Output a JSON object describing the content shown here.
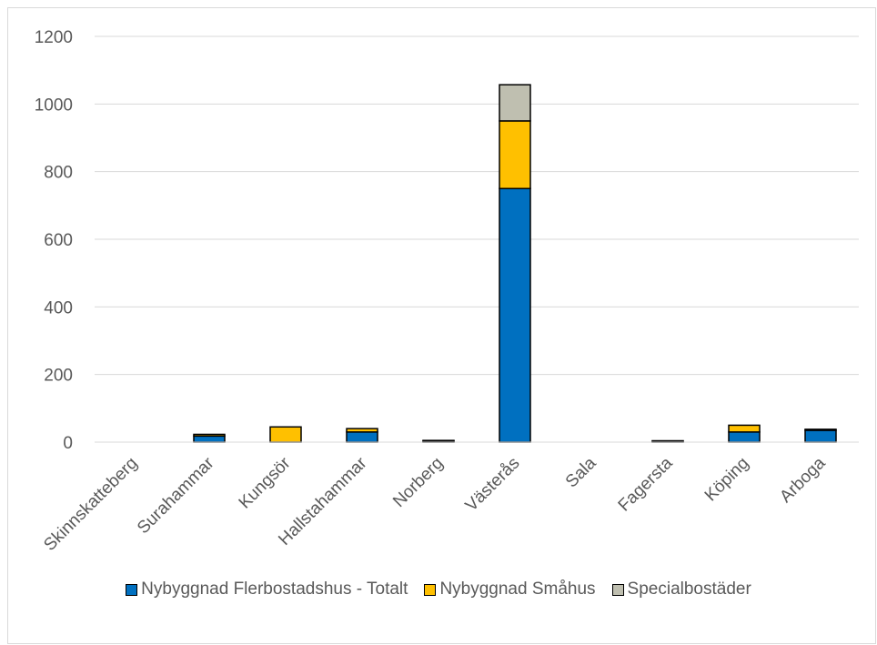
{
  "chart_data": {
    "type": "bar",
    "stacked": true,
    "categories": [
      "Skinnskatteberg",
      "Surahammar",
      "Kungsör",
      "Hallstahammar",
      "Norberg",
      "Västerås",
      "Sala",
      "Fagersta",
      "Köping",
      "Arboga"
    ],
    "series": [
      {
        "name": "Nybyggnad Flerbostadshus - Totalt",
        "color": "#0070C0",
        "values": [
          0,
          18,
          0,
          30,
          3,
          750,
          0,
          2,
          30,
          35
        ]
      },
      {
        "name": "Nybyggnad Småhus",
        "color": "#FFC000",
        "values": [
          0,
          5,
          45,
          10,
          2,
          200,
          0,
          2,
          20,
          3
        ]
      },
      {
        "name": "Specialbostäder",
        "color": "#BFBFB0",
        "values": [
          0,
          0,
          0,
          0,
          0,
          107,
          0,
          0,
          0,
          0
        ]
      }
    ],
    "yticks": [
      0,
      200,
      400,
      600,
      800,
      1000,
      1200
    ],
    "ylim": [
      0,
      1200
    ],
    "grid": true,
    "legend_position": "bottom"
  }
}
